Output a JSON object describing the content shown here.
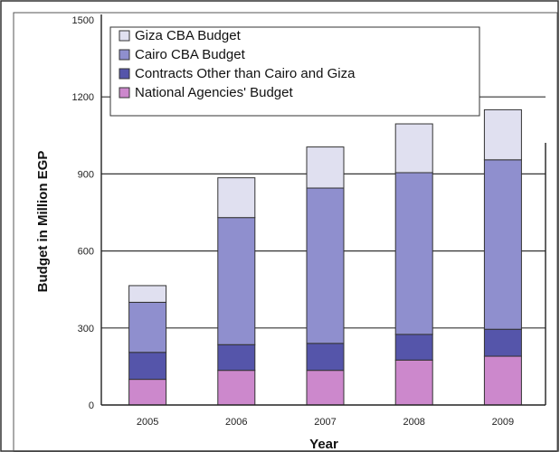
{
  "chart_data": {
    "type": "bar",
    "stacked": true,
    "title": "",
    "xlabel": "Year",
    "ylabel": "Budget in Million EGP",
    "ylim": [
      0,
      1500
    ],
    "yticks": [
      "0",
      "300",
      "600",
      "900",
      "1200",
      "1500"
    ],
    "grid": true,
    "legend_position": "top-left",
    "categories": [
      "2005",
      "2006",
      "2007",
      "2008",
      "2009"
    ],
    "series": [
      {
        "name": "National Agencies' Budget",
        "color": "#cc88cc",
        "values": [
          100,
          135,
          135,
          175,
          190
        ]
      },
      {
        "name": "Contracts Other than Cairo and Giza",
        "color": "#5555aa",
        "values": [
          105,
          100,
          105,
          100,
          105
        ]
      },
      {
        "name": "Cairo CBA Budget",
        "color": "#8f8fce",
        "values": [
          195,
          495,
          605,
          630,
          660
        ]
      },
      {
        "name": "Giza CBA Budget",
        "color": "#e0e0f0",
        "values": [
          65,
          155,
          160,
          190,
          195
        ]
      }
    ],
    "legend_order": [
      "Giza CBA Budget",
      "Cairo CBA Budget",
      "Contracts Other than Cairo and Giza",
      "National Agencies' Budget"
    ]
  }
}
